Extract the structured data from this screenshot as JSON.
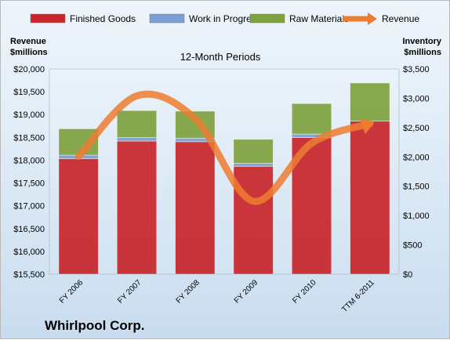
{
  "chart_data": {
    "type": "bar",
    "stacked": true,
    "title": "12-Month Periods",
    "company": "Whirlpool Corp.",
    "categories": [
      "FY 2006",
      "FY 2007",
      "FY 2008",
      "FY 2009",
      "FY 2010",
      "TTM 6-2011"
    ],
    "series": [
      {
        "name": "Finished Goods",
        "axis": "right",
        "type": "bar",
        "color": "#c8262c",
        "values": [
          1970,
          2270,
          2260,
          1840,
          2330,
          2610
        ]
      },
      {
        "name": "Work in Progress",
        "axis": "right",
        "type": "bar",
        "color": "#7b9fd3",
        "values": [
          60,
          60,
          60,
          50,
          60,
          0
        ]
      },
      {
        "name": "Raw Materials",
        "axis": "right",
        "type": "bar",
        "color": "#7fa23f",
        "values": [
          450,
          460,
          460,
          410,
          520,
          650
        ]
      },
      {
        "name": "Revenue",
        "axis": "left",
        "type": "line",
        "color": "#ed7d31",
        "values": [
          18080,
          19410,
          18910,
          17100,
          18370,
          18800
        ]
      }
    ],
    "y_left": {
      "label": "Revenue\n$millions",
      "lim": [
        15500,
        20000
      ],
      "ticks": [
        "$15,500",
        "$16,000",
        "$16,500",
        "$17,000",
        "$17,500",
        "$18,000",
        "$18,500",
        "$19,000",
        "$19,500",
        "$20,000"
      ]
    },
    "y_right": {
      "label": "Inventory\n$millions",
      "lim": [
        0,
        3500
      ],
      "ticks": [
        "$0",
        "$500",
        "$1,000",
        "$1,500",
        "$2,000",
        "$2,500",
        "$3,000",
        "$3,500"
      ]
    },
    "legend_position": "top",
    "grid": false
  }
}
